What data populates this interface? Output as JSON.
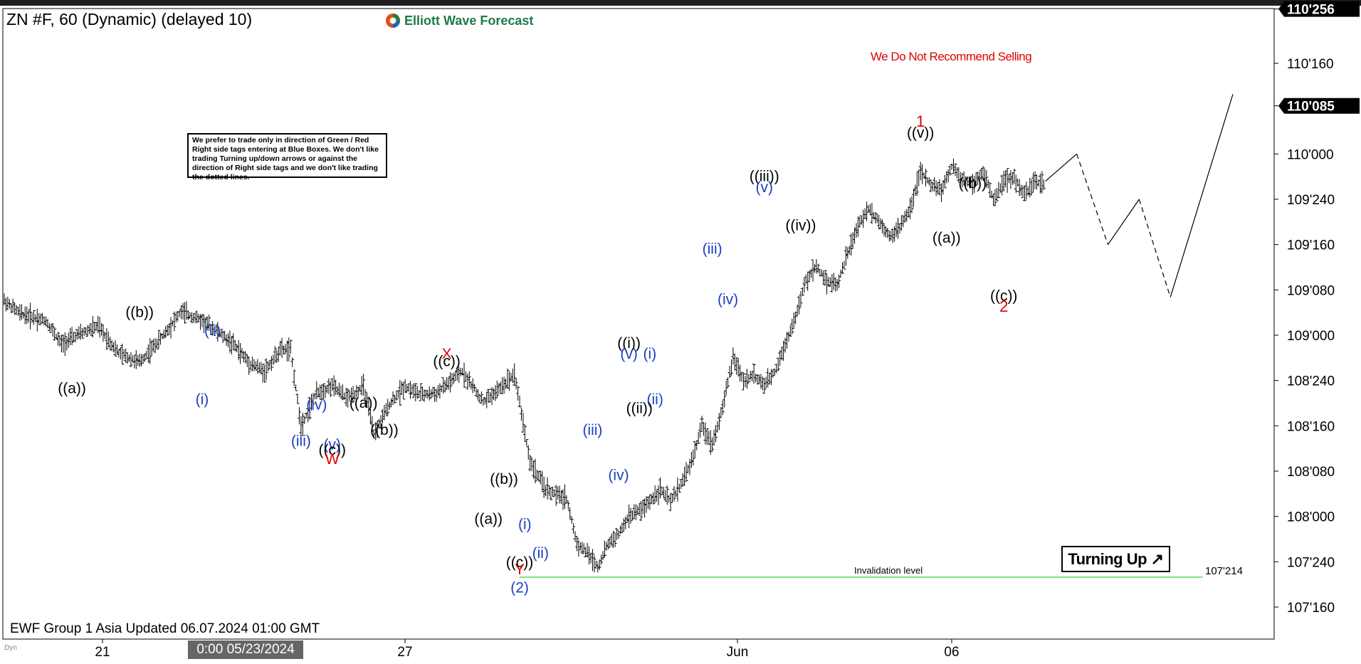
{
  "header": {
    "title": "ZN #F, 60 (Dynamic) (delayed 10)",
    "brand": "Elliott Wave Forecast"
  },
  "note": "We prefer to trade only in direction of Green / Red Right side tags entering at Blue Boxes. We don't like trading Turning up/down arrows or against the direction of Right side tags and we don't like trading the dotted lines.",
  "footer": {
    "updated": "EWF Group 1 Asia Updated 06.07.2024 01:00 GMT",
    "crosshair_date": "0:00 05/23/2024",
    "dyn": "Dyn"
  },
  "turning_badge": "Turning Up",
  "no_sell_text": "We Do Not Recommend Selling",
  "colors": {
    "wave_black": "#000000",
    "wave_blue": "#1a3fc4",
    "wave_red": "#e00000",
    "invalidation_line": "#55dd55",
    "price_badge_bg": "#000000"
  },
  "chart_data": {
    "type": "bar",
    "subtype": "ohlc",
    "symbol": "ZN #F",
    "timeframe": "60",
    "y_tick_labels": [
      "110'256",
      "110'160",
      "110'085",
      "110'000",
      "109'240",
      "109'160",
      "109'080",
      "109'000",
      "108'240",
      "108'160",
      "108'080",
      "108'000",
      "107'240",
      "107'160"
    ],
    "y_ticks_highlight": [
      "110'256",
      "110'085"
    ],
    "ylim_ticks_32nds": [
      107.375,
      110.85
    ],
    "x_tick_labels": [
      "21",
      "27",
      "Jun",
      "06"
    ],
    "price_path": [
      [
        0,
        109.19
      ],
      [
        3,
        109.12
      ],
      [
        8,
        109.08
      ],
      [
        11,
        108.95
      ],
      [
        14,
        109.0
      ],
      [
        18,
        109.05
      ],
      [
        22,
        108.9
      ],
      [
        26,
        108.85
      ],
      [
        30,
        108.98
      ],
      [
        34,
        109.13
      ],
      [
        38,
        109.08
      ],
      [
        40,
        109.04
      ],
      [
        44,
        108.95
      ],
      [
        47,
        108.85
      ],
      [
        50,
        108.8
      ],
      [
        53,
        108.92
      ],
      [
        55,
        108.92
      ],
      [
        57,
        108.5
      ],
      [
        60,
        108.68
      ],
      [
        63,
        108.72
      ],
      [
        66,
        108.65
      ],
      [
        69,
        108.72
      ],
      [
        71,
        108.45
      ],
      [
        74,
        108.62
      ],
      [
        77,
        108.72
      ],
      [
        80,
        108.67
      ],
      [
        83,
        108.68
      ],
      [
        86,
        108.75
      ],
      [
        88,
        108.8
      ],
      [
        92,
        108.63
      ],
      [
        95,
        108.7
      ],
      [
        98,
        108.79
      ],
      [
        101,
        108.3
      ],
      [
        104,
        108.15
      ],
      [
        106,
        108.12
      ],
      [
        108,
        108.1
      ],
      [
        110,
        107.85
      ],
      [
        112,
        107.8
      ],
      [
        114,
        107.72
      ],
      [
        116,
        107.85
      ],
      [
        118,
        107.9
      ],
      [
        120,
        108.0
      ],
      [
        123,
        108.05
      ],
      [
        126,
        108.15
      ],
      [
        128,
        108.08
      ],
      [
        130,
        108.18
      ],
      [
        132,
        108.3
      ],
      [
        134,
        108.5
      ],
      [
        136,
        108.4
      ],
      [
        138,
        108.6
      ],
      [
        140,
        108.88
      ],
      [
        142,
        108.75
      ],
      [
        144,
        108.78
      ],
      [
        146,
        108.72
      ],
      [
        148,
        108.8
      ],
      [
        150,
        108.95
      ],
      [
        152,
        109.1
      ],
      [
        154,
        109.3
      ],
      [
        156,
        109.38
      ],
      [
        158,
        109.3
      ],
      [
        160,
        109.28
      ],
      [
        162,
        109.45
      ],
      [
        164,
        109.6
      ],
      [
        166,
        109.7
      ],
      [
        168,
        109.63
      ],
      [
        170,
        109.55
      ],
      [
        172,
        109.59
      ],
      [
        174,
        109.7
      ],
      [
        176,
        109.9
      ],
      [
        178,
        109.83
      ],
      [
        180,
        109.8
      ],
      [
        182,
        109.93
      ],
      [
        184,
        109.86
      ],
      [
        186,
        109.84
      ],
      [
        188,
        109.9
      ],
      [
        190,
        109.75
      ],
      [
        192,
        109.85
      ],
      [
        194,
        109.87
      ],
      [
        196,
        109.77
      ],
      [
        198,
        109.85
      ],
      [
        200,
        109.83
      ]
    ],
    "projection": [
      {
        "from": [
          200,
          109.85
        ],
        "to": [
          206,
          110.0
        ],
        "style": "solid"
      },
      {
        "from": [
          206,
          110.0
        ],
        "to": [
          212,
          109.5
        ],
        "style": "dashed"
      },
      {
        "from": [
          212,
          109.5
        ],
        "to": [
          218,
          109.75
        ],
        "style": "solid"
      },
      {
        "from": [
          218,
          109.75
        ],
        "to": [
          224,
          109.21
        ],
        "style": "dashed"
      },
      {
        "from": [
          224,
          109.21
        ],
        "to": [
          236,
          110.33
        ],
        "style": "solid"
      }
    ],
    "labels": [
      {
        "text": "((a))",
        "color": "black",
        "at": [
          13,
          108.68
        ]
      },
      {
        "text": "((b))",
        "color": "black",
        "at": [
          26,
          109.1
        ]
      },
      {
        "text": "(i)",
        "color": "blue",
        "at": [
          38,
          108.62
        ]
      },
      {
        "text": "(ii)",
        "color": "blue",
        "at": [
          40,
          109.0
        ]
      },
      {
        "text": "(iii)",
        "color": "blue",
        "at": [
          57,
          108.39
        ]
      },
      {
        "text": "(iv)",
        "color": "blue",
        "at": [
          60,
          108.59
        ]
      },
      {
        "text": "(v)",
        "color": "blue",
        "at": [
          63,
          108.37
        ]
      },
      {
        "text": "((c))",
        "color": "black",
        "at": [
          63,
          108.34
        ]
      },
      {
        "text": "W",
        "color": "red",
        "at": [
          63,
          108.29
        ]
      },
      {
        "text": "((a))",
        "color": "black",
        "at": [
          69,
          108.6
        ]
      },
      {
        "text": "((b))",
        "color": "black",
        "at": [
          73,
          108.45
        ]
      },
      {
        "text": "X",
        "color": "red",
        "at": [
          85,
          108.87
        ]
      },
      {
        "text": "((c))",
        "color": "black",
        "at": [
          85,
          108.83
        ]
      },
      {
        "text": "((a))",
        "color": "black",
        "at": [
          93,
          107.96
        ]
      },
      {
        "text": "((b))",
        "color": "black",
        "at": [
          96,
          108.18
        ]
      },
      {
        "text": "(i)",
        "color": "blue",
        "at": [
          100,
          107.93
        ]
      },
      {
        "text": "((c))",
        "color": "black",
        "at": [
          99,
          107.72
        ]
      },
      {
        "text": "(ii)",
        "color": "blue",
        "at": [
          103,
          107.77
        ]
      },
      {
        "text": "Y",
        "color": "red",
        "at": [
          99,
          107.68
        ]
      },
      {
        "text": "(2)",
        "color": "blue",
        "at": [
          99,
          107.58
        ]
      },
      {
        "text": "(iii)",
        "color": "blue",
        "at": [
          113,
          108.45
        ]
      },
      {
        "text": "(iv)",
        "color": "blue",
        "at": [
          118,
          108.2
        ]
      },
      {
        "text": "((i))",
        "color": "black",
        "at": [
          120,
          108.93
        ]
      },
      {
        "text": "(v)",
        "color": "blue",
        "at": [
          120,
          108.87
        ]
      },
      {
        "text": "(i)",
        "color": "blue",
        "at": [
          124,
          108.87
        ]
      },
      {
        "text": "(ii)",
        "color": "blue",
        "at": [
          125,
          108.62
        ]
      },
      {
        "text": "((ii))",
        "color": "black",
        "at": [
          122,
          108.57
        ]
      },
      {
        "text": "(iii)",
        "color": "blue",
        "at": [
          136,
          109.45
        ]
      },
      {
        "text": "(iv)",
        "color": "blue",
        "at": [
          139,
          109.17
        ]
      },
      {
        "text": "((iii))",
        "color": "black",
        "at": [
          146,
          109.85
        ]
      },
      {
        "text": "(v)",
        "color": "blue",
        "at": [
          146,
          109.79
        ]
      },
      {
        "text": "((iv))",
        "color": "black",
        "at": [
          153,
          109.58
        ]
      },
      {
        "text": "1",
        "color": "red",
        "at": [
          176,
          110.15
        ]
      },
      {
        "text": "((v))",
        "color": "black",
        "at": [
          176,
          110.09
        ]
      },
      {
        "text": "((a))",
        "color": "black",
        "at": [
          181,
          109.51
        ]
      },
      {
        "text": "((b))",
        "color": "black",
        "at": [
          186,
          109.81
        ]
      },
      {
        "text": "((c))",
        "color": "black",
        "at": [
          192,
          109.19
        ]
      },
      {
        "text": "2",
        "color": "red",
        "at": [
          192,
          109.13
        ]
      }
    ],
    "invalidation": {
      "label": "Invalidation level",
      "value_label": "107'214",
      "price": 107.665
    },
    "current_price_label": "110'085"
  }
}
